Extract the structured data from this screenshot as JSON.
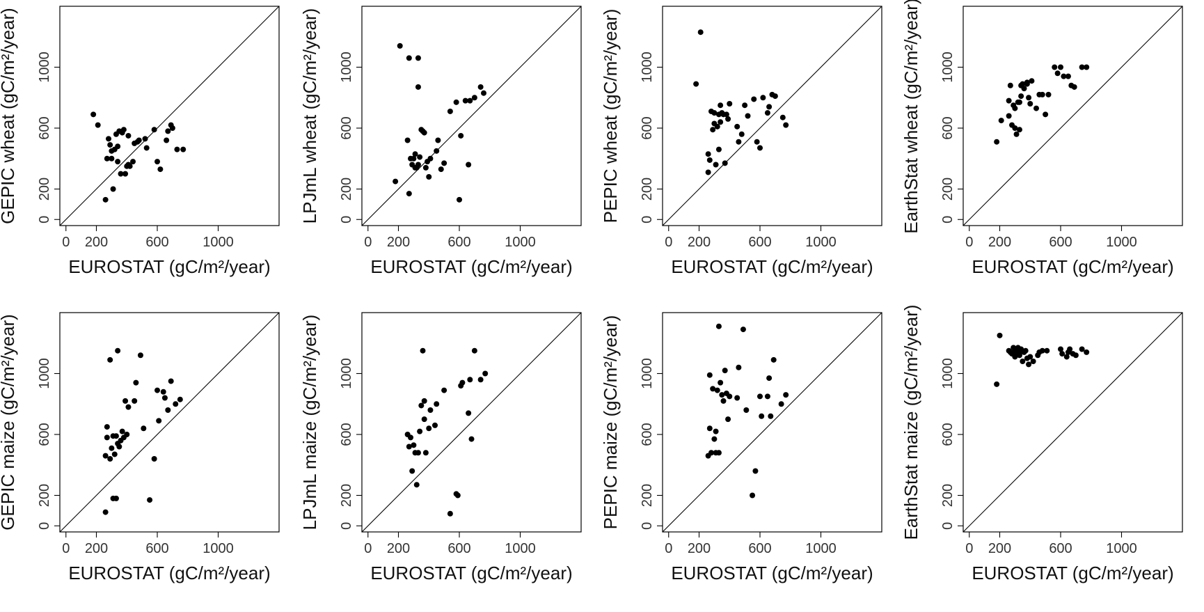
{
  "figure": {
    "colors": {
      "points": "#000000",
      "axes": "#000000",
      "background": "#ffffff"
    }
  },
  "chart_data": [
    {
      "type": "scatter",
      "title": "",
      "xlabel": "EUROSTAT (gC/m²/year)",
      "ylabel": "GEPIC wheat (gC/m²/year)",
      "xlim": [
        -40,
        1400
      ],
      "ylim": [
        -40,
        1400
      ],
      "xticks": [
        0,
        200,
        600,
        1000
      ],
      "yticks": [
        0,
        200,
        600,
        1000
      ],
      "grid": false,
      "reference_line": "y = x",
      "points": [
        [
          180,
          690
        ],
        [
          210,
          620
        ],
        [
          260,
          130
        ],
        [
          270,
          400
        ],
        [
          280,
          530
        ],
        [
          290,
          490
        ],
        [
          300,
          450
        ],
        [
          300,
          400
        ],
        [
          310,
          200
        ],
        [
          320,
          460
        ],
        [
          330,
          560
        ],
        [
          340,
          380
        ],
        [
          340,
          480
        ],
        [
          350,
          580
        ],
        [
          360,
          300
        ],
        [
          370,
          570
        ],
        [
          380,
          590
        ],
        [
          390,
          300
        ],
        [
          400,
          350
        ],
        [
          410,
          360
        ],
        [
          410,
          550
        ],
        [
          420,
          350
        ],
        [
          440,
          380
        ],
        [
          450,
          500
        ],
        [
          470,
          510
        ],
        [
          480,
          520
        ],
        [
          520,
          530
        ],
        [
          530,
          470
        ],
        [
          580,
          590
        ],
        [
          600,
          380
        ],
        [
          620,
          330
        ],
        [
          660,
          520
        ],
        [
          670,
          580
        ],
        [
          690,
          620
        ],
        [
          700,
          600
        ],
        [
          730,
          460
        ],
        [
          770,
          460
        ]
      ]
    },
    {
      "type": "scatter",
      "title": "",
      "xlabel": "EUROSTAT (gC/m²/year)",
      "ylabel": "LPJmL wheat (gC/m²/year)",
      "xlim": [
        -40,
        1400
      ],
      "ylim": [
        -40,
        1400
      ],
      "xticks": [
        0,
        200,
        600,
        1000
      ],
      "yticks": [
        0,
        200,
        600,
        1000
      ],
      "grid": false,
      "reference_line": "y = x",
      "points": [
        [
          180,
          250
        ],
        [
          210,
          1140
        ],
        [
          260,
          520
        ],
        [
          270,
          1060
        ],
        [
          270,
          170
        ],
        [
          280,
          400
        ],
        [
          290,
          360
        ],
        [
          300,
          400
        ],
        [
          310,
          340
        ],
        [
          310,
          430
        ],
        [
          320,
          340
        ],
        [
          330,
          1060
        ],
        [
          330,
          870
        ],
        [
          330,
          360
        ],
        [
          340,
          410
        ],
        [
          350,
          590
        ],
        [
          360,
          580
        ],
        [
          370,
          570
        ],
        [
          380,
          340
        ],
        [
          390,
          380
        ],
        [
          400,
          280
        ],
        [
          410,
          400
        ],
        [
          450,
          450
        ],
        [
          460,
          520
        ],
        [
          480,
          330
        ],
        [
          500,
          370
        ],
        [
          540,
          710
        ],
        [
          580,
          770
        ],
        [
          600,
          130
        ],
        [
          610,
          550
        ],
        [
          640,
          780
        ],
        [
          660,
          360
        ],
        [
          670,
          780
        ],
        [
          700,
          800
        ],
        [
          740,
          870
        ],
        [
          760,
          830
        ]
      ]
    },
    {
      "type": "scatter",
      "title": "",
      "xlabel": "EUROSTAT (gC/m²/year)",
      "ylabel": "PEPIC wheat (gC/m²/year)",
      "xlim": [
        -40,
        1400
      ],
      "ylim": [
        -40,
        1400
      ],
      "xticks": [
        0,
        200,
        600,
        1000
      ],
      "yticks": [
        0,
        200,
        600,
        1000
      ],
      "grid": false,
      "reference_line": "y = x",
      "points": [
        [
          180,
          890
        ],
        [
          210,
          1230
        ],
        [
          260,
          310
        ],
        [
          260,
          430
        ],
        [
          270,
          390
        ],
        [
          280,
          710
        ],
        [
          290,
          590
        ],
        [
          300,
          700
        ],
        [
          300,
          630
        ],
        [
          310,
          360
        ],
        [
          320,
          610
        ],
        [
          330,
          690
        ],
        [
          330,
          460
        ],
        [
          340,
          640
        ],
        [
          340,
          750
        ],
        [
          350,
          700
        ],
        [
          360,
          690
        ],
        [
          370,
          370
        ],
        [
          380,
          690
        ],
        [
          390,
          660
        ],
        [
          400,
          760
        ],
        [
          450,
          610
        ],
        [
          460,
          510
        ],
        [
          480,
          560
        ],
        [
          500,
          750
        ],
        [
          520,
          680
        ],
        [
          560,
          790
        ],
        [
          580,
          510
        ],
        [
          600,
          470
        ],
        [
          620,
          800
        ],
        [
          650,
          700
        ],
        [
          660,
          740
        ],
        [
          680,
          820
        ],
        [
          700,
          810
        ],
        [
          750,
          670
        ],
        [
          770,
          620
        ]
      ]
    },
    {
      "type": "scatter",
      "title": "",
      "xlabel": "EUROSTAT (gC/m²/year)",
      "ylabel": "EarthStat wheat (gC/m²/year)",
      "xlim": [
        -40,
        1400
      ],
      "ylim": [
        -40,
        1400
      ],
      "xticks": [
        0,
        200,
        600,
        1000
      ],
      "yticks": [
        0,
        200,
        600,
        1000
      ],
      "grid": false,
      "reference_line": "y = x",
      "points": [
        [
          180,
          510
        ],
        [
          210,
          650
        ],
        [
          260,
          680
        ],
        [
          260,
          780
        ],
        [
          270,
          880
        ],
        [
          280,
          620
        ],
        [
          290,
          750
        ],
        [
          300,
          600
        ],
        [
          300,
          730
        ],
        [
          310,
          560
        ],
        [
          320,
          770
        ],
        [
          330,
          590
        ],
        [
          330,
          770
        ],
        [
          340,
          880
        ],
        [
          340,
          810
        ],
        [
          350,
          890
        ],
        [
          360,
          860
        ],
        [
          380,
          890
        ],
        [
          380,
          900
        ],
        [
          390,
          800
        ],
        [
          400,
          760
        ],
        [
          410,
          910
        ],
        [
          440,
          730
        ],
        [
          460,
          820
        ],
        [
          480,
          820
        ],
        [
          500,
          690
        ],
        [
          520,
          820
        ],
        [
          560,
          1000
        ],
        [
          580,
          960
        ],
        [
          600,
          1000
        ],
        [
          620,
          940
        ],
        [
          650,
          940
        ],
        [
          670,
          880
        ],
        [
          690,
          870
        ],
        [
          740,
          1000
        ],
        [
          770,
          1000
        ]
      ]
    },
    {
      "type": "scatter",
      "title": "",
      "xlabel": "EUROSTAT (gC/m²/year)",
      "ylabel": "GEPIC maize (gC/m²/year)",
      "xlim": [
        -40,
        1400
      ],
      "ylim": [
        -40,
        1400
      ],
      "xticks": [
        0,
        200,
        600,
        1000
      ],
      "yticks": [
        0,
        200,
        600,
        1000
      ],
      "grid": false,
      "reference_line": "y = x",
      "points": [
        [
          260,
          90
        ],
        [
          260,
          460
        ],
        [
          270,
          580
        ],
        [
          270,
          650
        ],
        [
          290,
          1090
        ],
        [
          290,
          440
        ],
        [
          300,
          510
        ],
        [
          310,
          590
        ],
        [
          310,
          180
        ],
        [
          320,
          470
        ],
        [
          330,
          180
        ],
        [
          330,
          590
        ],
        [
          340,
          1150
        ],
        [
          340,
          540
        ],
        [
          350,
          520
        ],
        [
          360,
          560
        ],
        [
          370,
          620
        ],
        [
          380,
          580
        ],
        [
          390,
          820
        ],
        [
          400,
          600
        ],
        [
          410,
          780
        ],
        [
          450,
          820
        ],
        [
          460,
          940
        ],
        [
          490,
          1120
        ],
        [
          510,
          640
        ],
        [
          550,
          170
        ],
        [
          580,
          440
        ],
        [
          600,
          890
        ],
        [
          610,
          690
        ],
        [
          640,
          880
        ],
        [
          650,
          840
        ],
        [
          670,
          760
        ],
        [
          690,
          950
        ],
        [
          720,
          800
        ],
        [
          750,
          830
        ]
      ]
    },
    {
      "type": "scatter",
      "title": "",
      "xlabel": "EUROSTAT (gC/m²/year)",
      "ylabel": "LPJmL maize (gC/m²/year)",
      "xlim": [
        -40,
        1400
      ],
      "ylim": [
        -40,
        1400
      ],
      "xticks": [
        0,
        200,
        600,
        1000
      ],
      "yticks": [
        0,
        200,
        600,
        1000
      ],
      "grid": false,
      "reference_line": "y = x",
      "points": [
        [
          260,
          600
        ],
        [
          270,
          520
        ],
        [
          280,
          580
        ],
        [
          290,
          360
        ],
        [
          300,
          530
        ],
        [
          310,
          480
        ],
        [
          320,
          270
        ],
        [
          330,
          480
        ],
        [
          340,
          620
        ],
        [
          350,
          790
        ],
        [
          360,
          1150
        ],
        [
          370,
          820
        ],
        [
          370,
          700
        ],
        [
          380,
          480
        ],
        [
          400,
          640
        ],
        [
          410,
          760
        ],
        [
          440,
          660
        ],
        [
          450,
          800
        ],
        [
          500,
          890
        ],
        [
          540,
          80
        ],
        [
          580,
          210
        ],
        [
          590,
          200
        ],
        [
          610,
          920
        ],
        [
          620,
          940
        ],
        [
          660,
          740
        ],
        [
          670,
          960
        ],
        [
          680,
          570
        ],
        [
          700,
          1150
        ],
        [
          740,
          960
        ],
        [
          770,
          1000
        ]
      ]
    },
    {
      "type": "scatter",
      "title": "",
      "xlabel": "EUROSTAT (gC/m²/year)",
      "ylabel": "PEPIC maize (gC/m²/year)",
      "xlim": [
        -40,
        1400
      ],
      "ylim": [
        -40,
        1400
      ],
      "xticks": [
        0,
        200,
        600,
        1000
      ],
      "yticks": [
        0,
        200,
        600,
        1000
      ],
      "grid": false,
      "reference_line": "y = x",
      "points": [
        [
          260,
          460
        ],
        [
          270,
          640
        ],
        [
          270,
          990
        ],
        [
          280,
          480
        ],
        [
          290,
          900
        ],
        [
          300,
          570
        ],
        [
          310,
          620
        ],
        [
          310,
          480
        ],
        [
          320,
          890
        ],
        [
          330,
          480
        ],
        [
          330,
          1310
        ],
        [
          340,
          940
        ],
        [
          350,
          860
        ],
        [
          360,
          820
        ],
        [
          370,
          1020
        ],
        [
          380,
          870
        ],
        [
          390,
          700
        ],
        [
          400,
          850
        ],
        [
          450,
          840
        ],
        [
          460,
          1040
        ],
        [
          490,
          1290
        ],
        [
          510,
          760
        ],
        [
          550,
          200
        ],
        [
          570,
          360
        ],
        [
          600,
          850
        ],
        [
          610,
          720
        ],
        [
          650,
          850
        ],
        [
          660,
          970
        ],
        [
          670,
          720
        ],
        [
          690,
          1090
        ],
        [
          740,
          800
        ],
        [
          770,
          860
        ]
      ]
    },
    {
      "type": "scatter",
      "title": "",
      "xlabel": "EUROSTAT (gC/m²/year)",
      "ylabel": "EarthStat maize (gC/m²/year)",
      "xlim": [
        -40,
        1400
      ],
      "ylim": [
        -40,
        1400
      ],
      "xticks": [
        0,
        200,
        600,
        1000
      ],
      "yticks": [
        0,
        200,
        600,
        1000
      ],
      "grid": false,
      "reference_line": "y = x",
      "points": [
        [
          180,
          930
        ],
        [
          200,
          1250
        ],
        [
          260,
          1150
        ],
        [
          270,
          1140
        ],
        [
          280,
          1130
        ],
        [
          290,
          1170
        ],
        [
          300,
          1110
        ],
        [
          300,
          1150
        ],
        [
          310,
          1130
        ],
        [
          320,
          1170
        ],
        [
          330,
          1120
        ],
        [
          330,
          1140
        ],
        [
          340,
          1160
        ],
        [
          350,
          1080
        ],
        [
          360,
          1140
        ],
        [
          370,
          1150
        ],
        [
          380,
          1100
        ],
        [
          390,
          1060
        ],
        [
          400,
          1110
        ],
        [
          420,
          1080
        ],
        [
          450,
          1120
        ],
        [
          460,
          1140
        ],
        [
          480,
          1150
        ],
        [
          510,
          1150
        ],
        [
          600,
          1160
        ],
        [
          610,
          1130
        ],
        [
          640,
          1110
        ],
        [
          650,
          1140
        ],
        [
          660,
          1160
        ],
        [
          680,
          1130
        ],
        [
          700,
          1120
        ],
        [
          740,
          1160
        ],
        [
          770,
          1140
        ]
      ]
    }
  ]
}
